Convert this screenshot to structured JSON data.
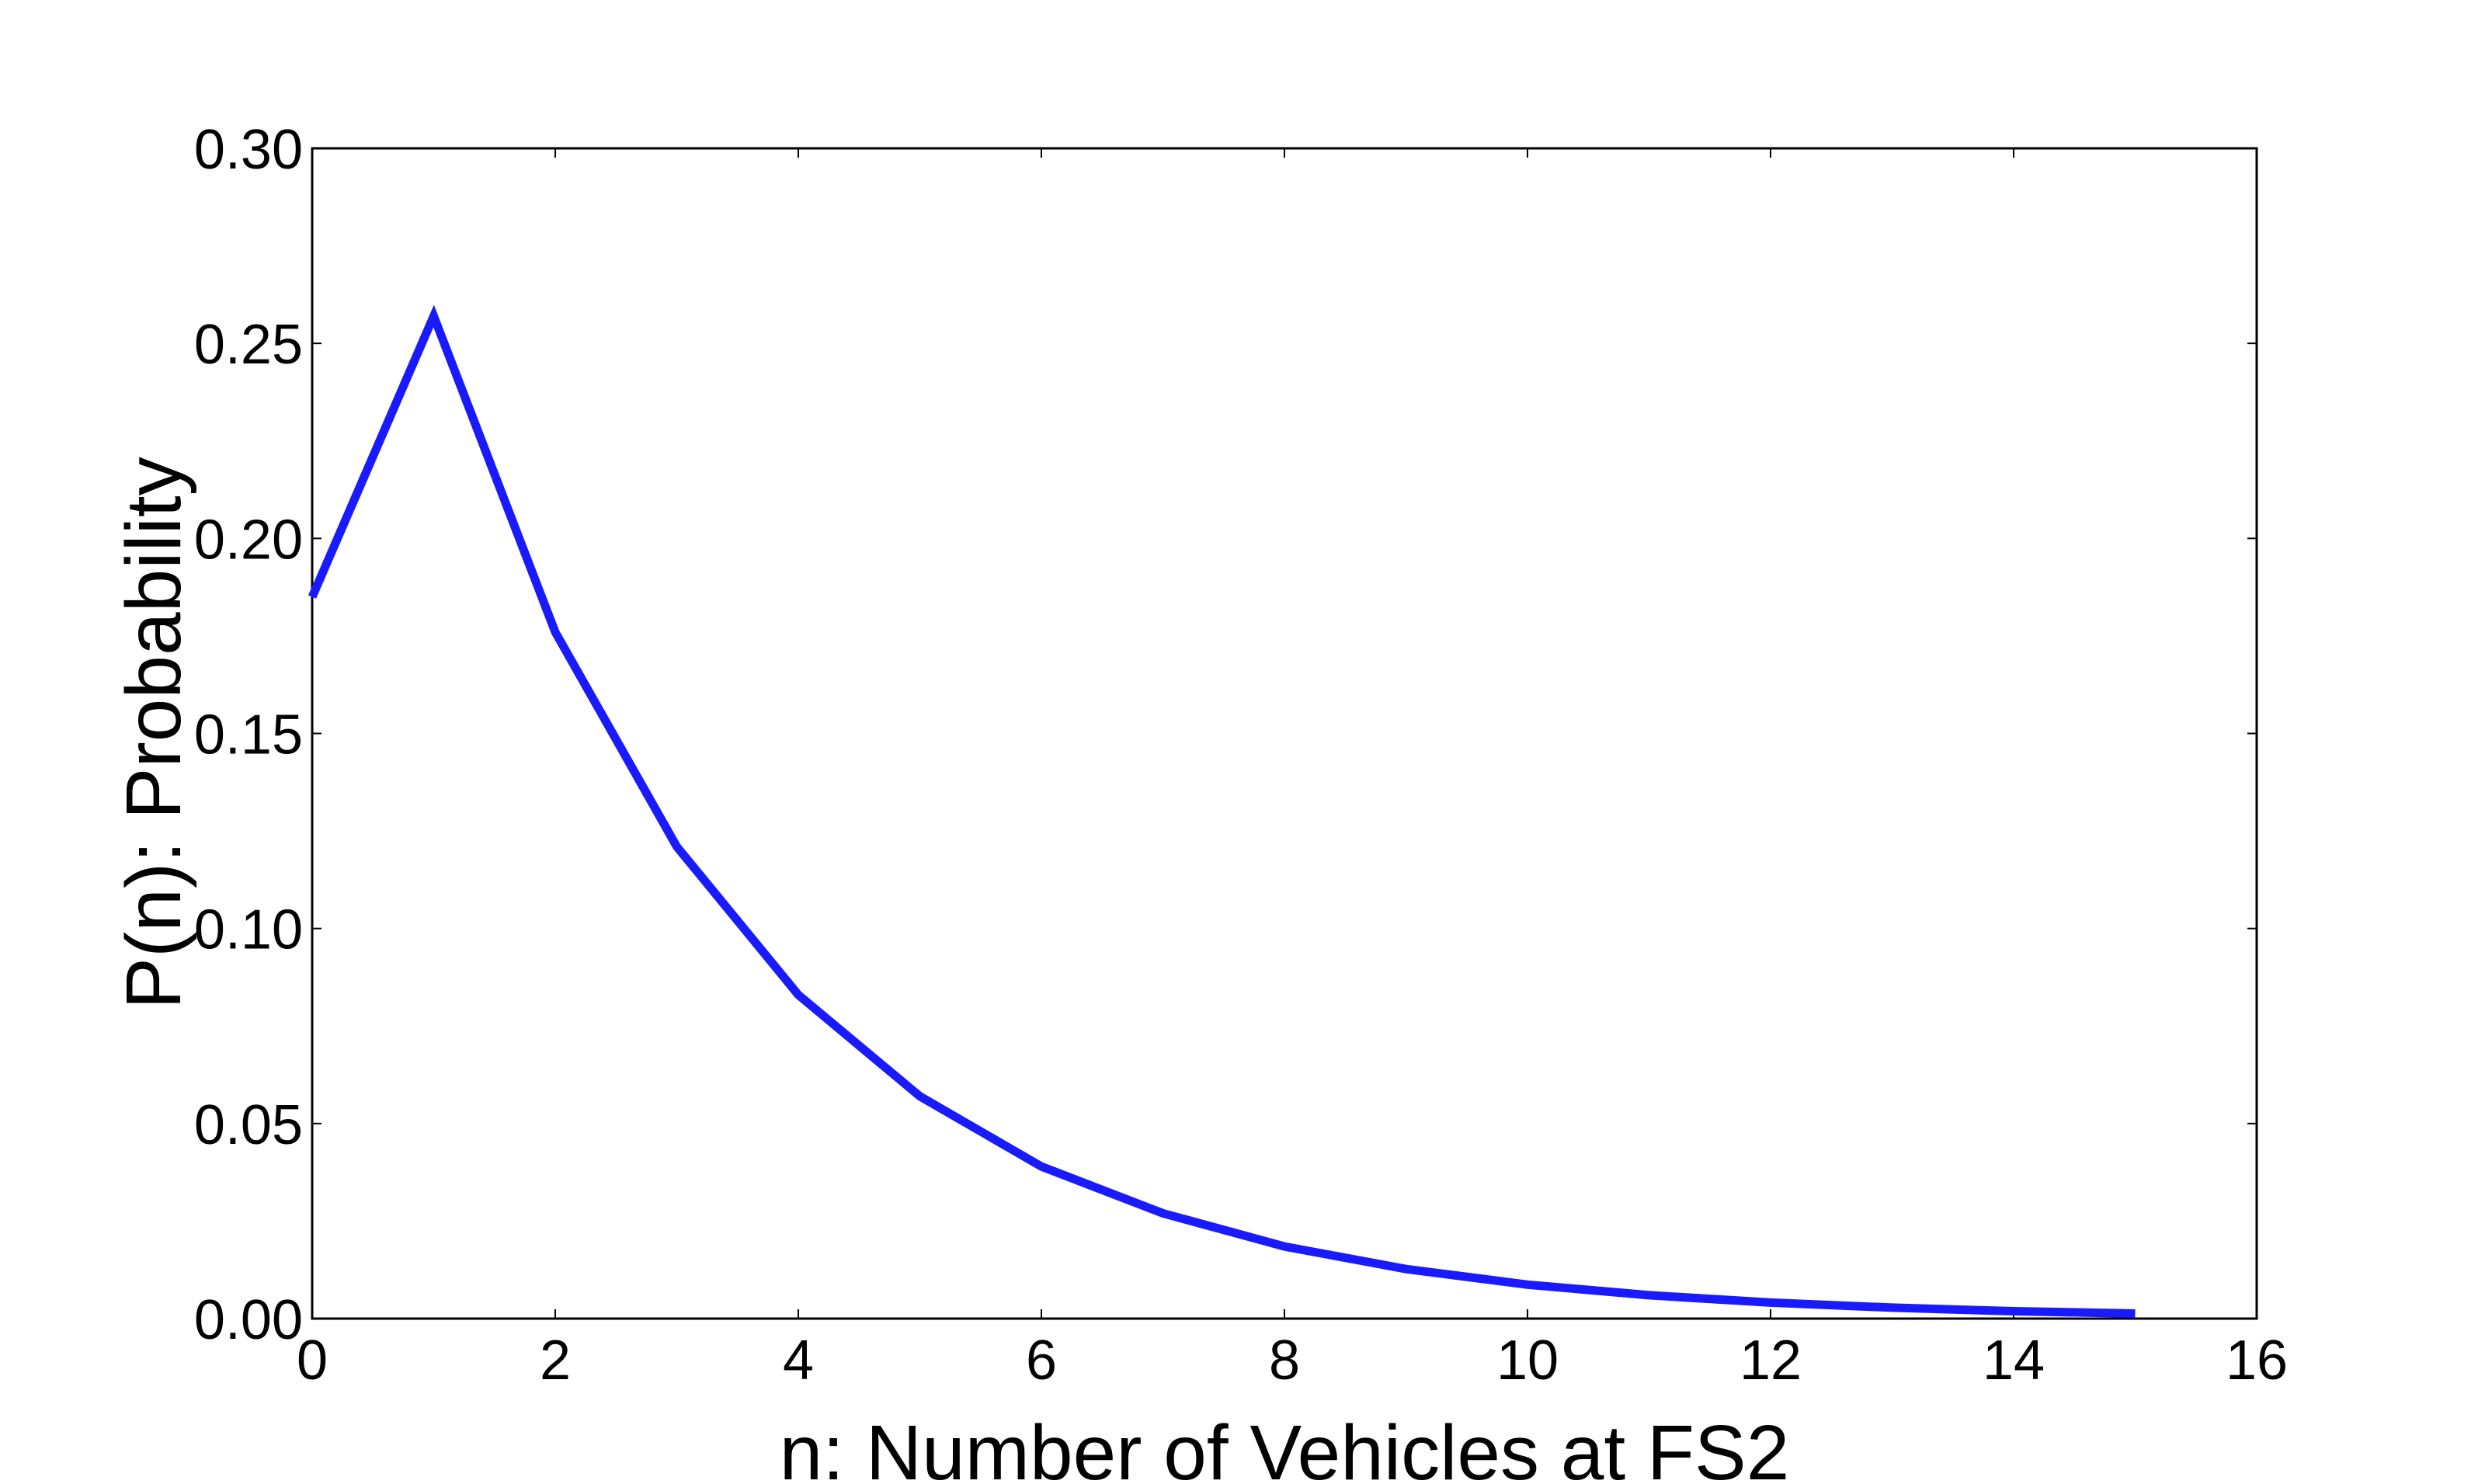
{
  "chart_data": {
    "type": "line",
    "title": "",
    "xlabel": "n: Number of Vehicles at FS2",
    "ylabel": "P(n): Probability",
    "xlim": [
      0,
      16
    ],
    "ylim": [
      0,
      0.3
    ],
    "xticks": [
      0,
      2,
      4,
      6,
      8,
      10,
      12,
      14,
      16
    ],
    "xtick_labels": [
      "0",
      "2",
      "4",
      "6",
      "8",
      "10",
      "12",
      "14",
      "16"
    ],
    "yticks": [
      0,
      0.05,
      0.1,
      0.15,
      0.2,
      0.25,
      0.3
    ],
    "ytick_labels": [
      "0.00",
      "0.05",
      "0.10",
      "0.15",
      "0.20",
      "0.25",
      "0.30"
    ],
    "grid": false,
    "series": [
      {
        "color": "#1a1aff",
        "x": [
          0,
          1,
          2,
          3,
          4,
          5,
          6,
          7,
          8,
          9,
          10,
          11,
          12,
          13,
          14,
          15
        ],
        "y": [
          0.185,
          0.257,
          0.176,
          0.121,
          0.083,
          0.057,
          0.039,
          0.027,
          0.0185,
          0.0127,
          0.0087,
          0.006,
          0.0041,
          0.0028,
          0.0019,
          0.0013
        ]
      }
    ]
  }
}
